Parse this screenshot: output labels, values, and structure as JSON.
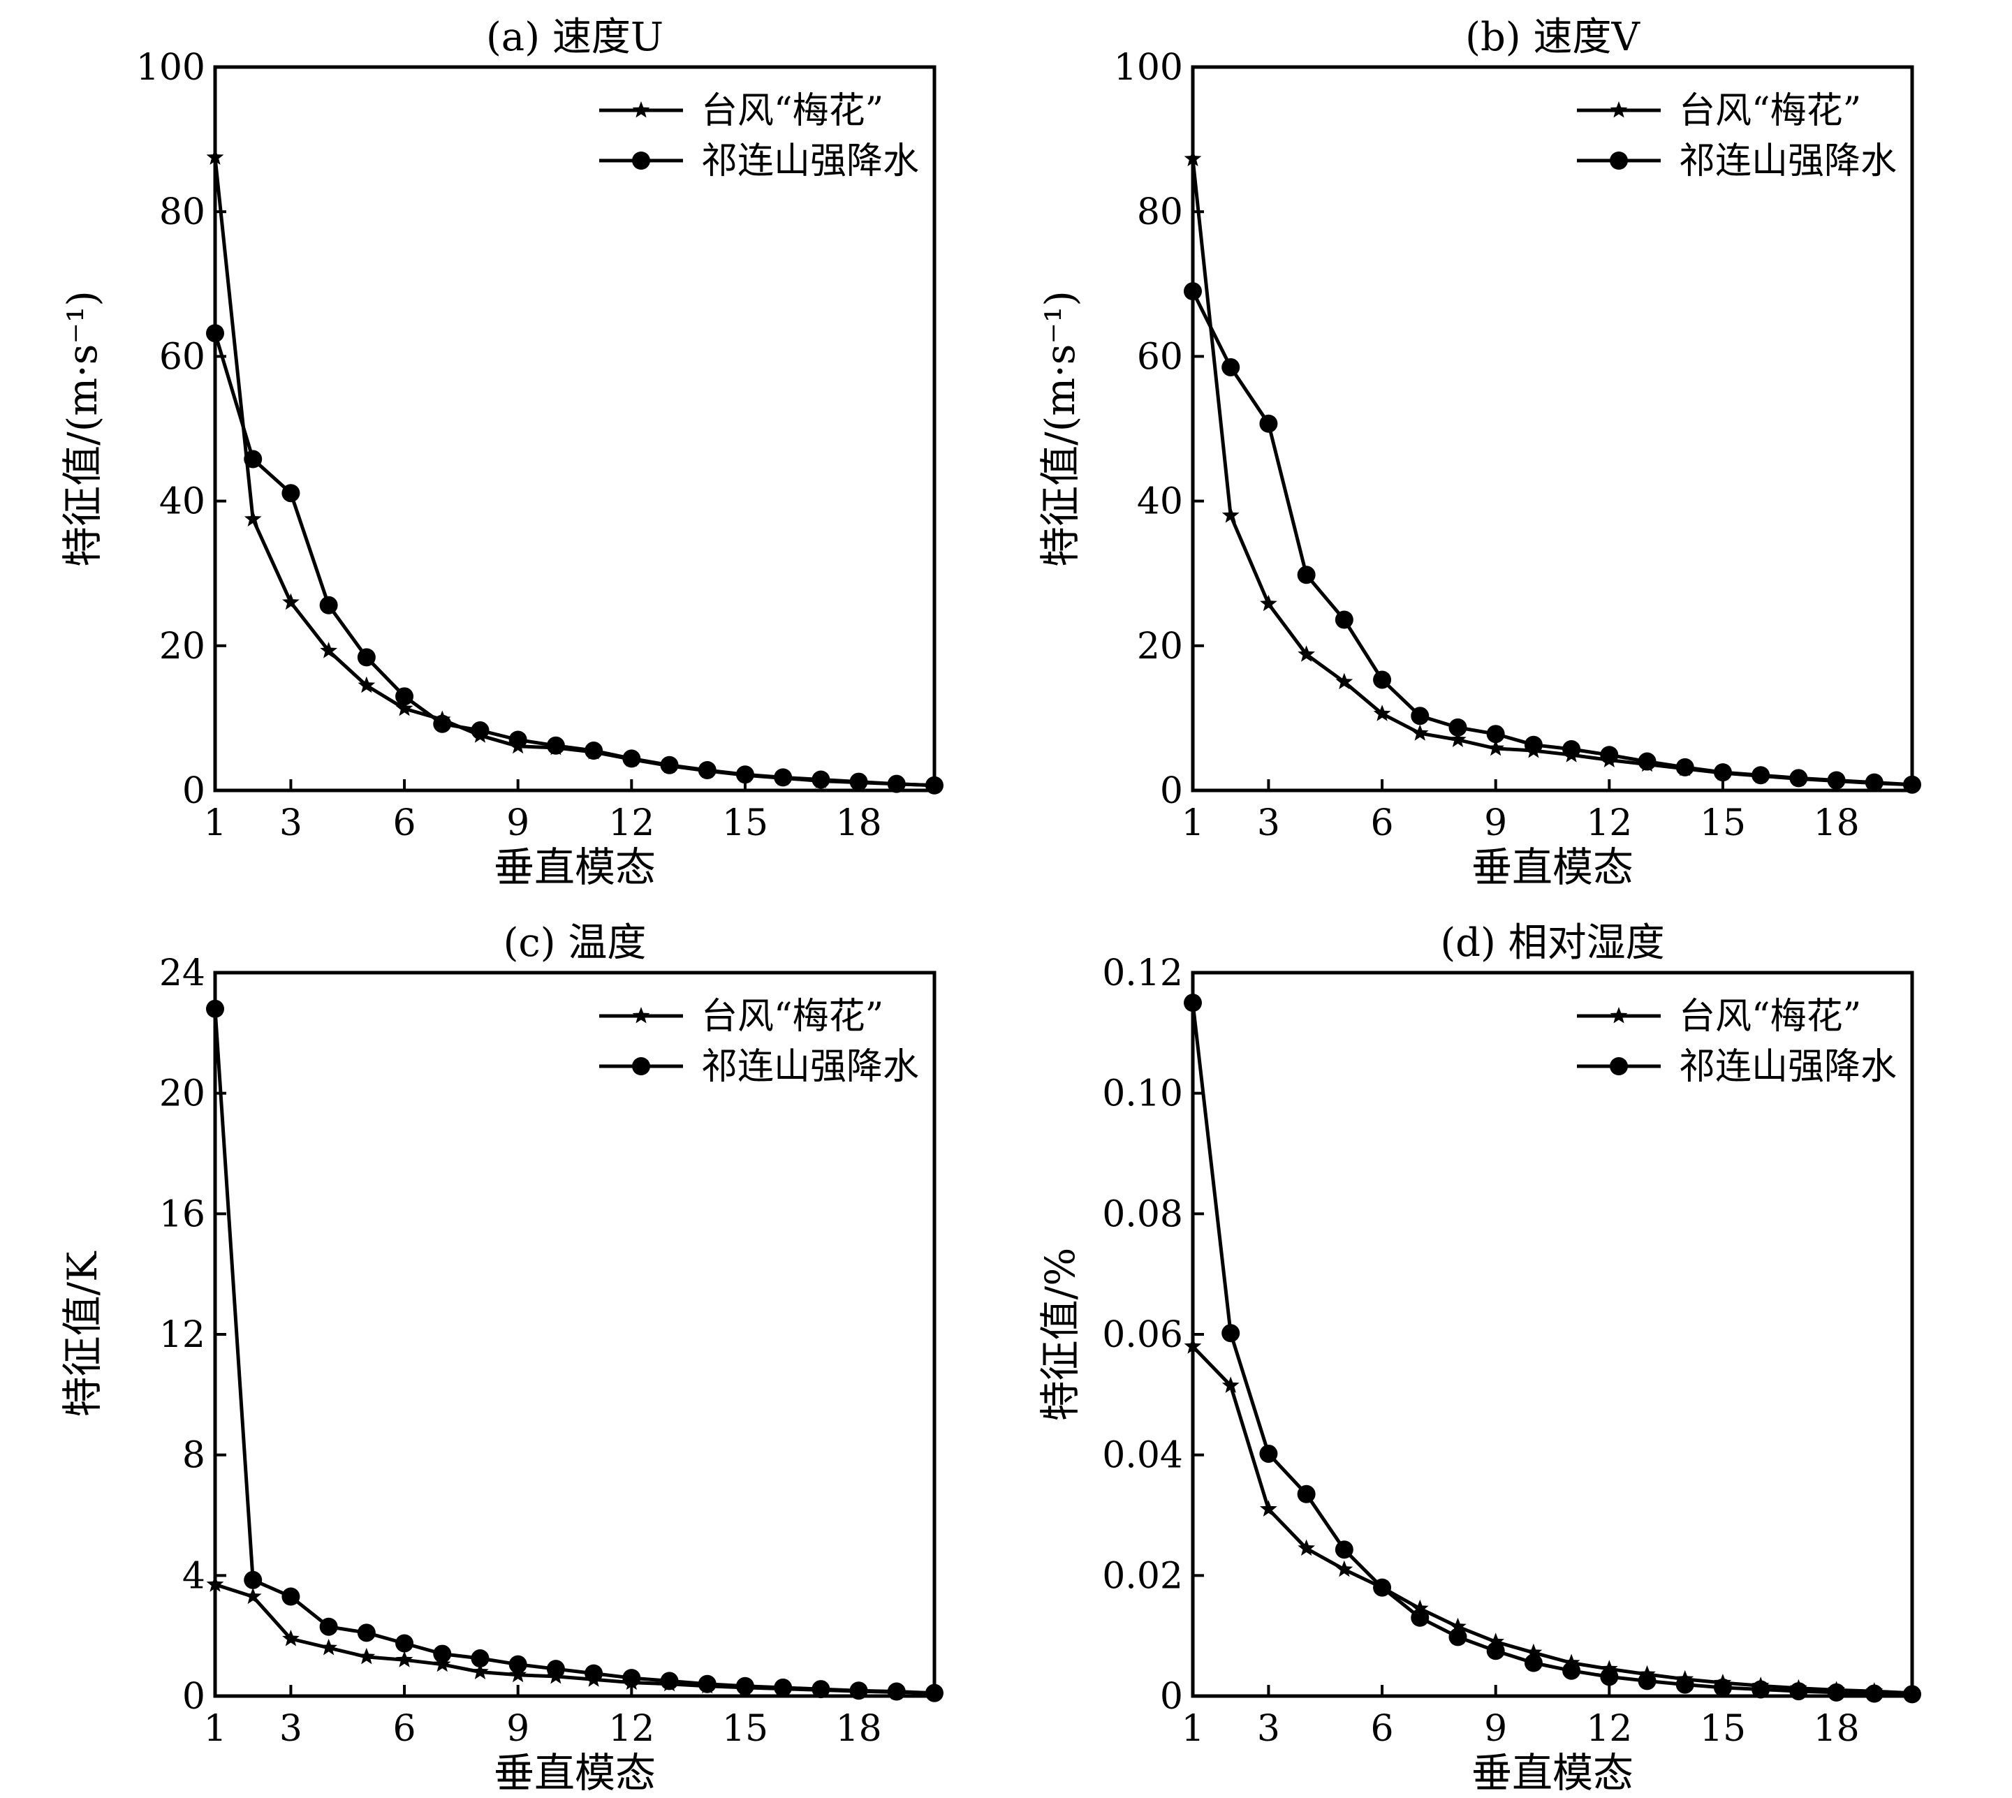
{
  "figure": {
    "legend_placement": "top-right",
    "line_color": "#000000",
    "background": "#ffffff"
  },
  "chart_data": [
    {
      "id": "a",
      "type": "line",
      "title": "(a) 速度U",
      "xlabel": "垂直模态",
      "ylabel": "特征值/(m·s⁻¹)",
      "xlim": [
        1,
        20
      ],
      "ylim": [
        0,
        100
      ],
      "xticks": [
        1,
        3,
        6,
        9,
        12,
        15,
        18
      ],
      "yticks": [
        0,
        20,
        40,
        60,
        80,
        100
      ],
      "ytick_labels": [
        "0",
        "20",
        "40",
        "60",
        "80",
        "100"
      ],
      "x": [
        1,
        2,
        3,
        4,
        5,
        6,
        7,
        8,
        9,
        10,
        11,
        12,
        13,
        14,
        15,
        16,
        17,
        18,
        19,
        20
      ],
      "series": [
        {
          "name": "台风“梅花”",
          "marker": "star",
          "values": [
            87.5,
            37.5,
            26,
            19.3,
            14.5,
            11.3,
            9.8,
            7.6,
            6.1,
            5.9,
            5.3,
            4.3,
            3.4,
            2.7,
            2.1,
            1.7,
            1.3,
            1.1,
            0.9,
            0.7
          ]
        },
        {
          "name": "祁连山强降水",
          "marker": "circle",
          "values": [
            63.2,
            45.8,
            41.1,
            25.6,
            18.4,
            13.0,
            9.2,
            8.3,
            7.0,
            6.2,
            5.5,
            4.4,
            3.5,
            2.8,
            2.2,
            1.8,
            1.5,
            1.2,
            0.9,
            0.7
          ]
        }
      ]
    },
    {
      "id": "b",
      "type": "line",
      "title": "(b) 速度V",
      "xlabel": "垂直模态",
      "ylabel": "特征值/(m·s⁻¹)",
      "xlim": [
        1,
        20
      ],
      "ylim": [
        0,
        100
      ],
      "xticks": [
        1,
        3,
        6,
        9,
        12,
        15,
        18
      ],
      "yticks": [
        0,
        20,
        40,
        60,
        80,
        100
      ],
      "ytick_labels": [
        "0",
        "20",
        "40",
        "60",
        "80",
        "100"
      ],
      "x": [
        1,
        2,
        3,
        4,
        5,
        6,
        7,
        8,
        9,
        10,
        11,
        12,
        13,
        14,
        15,
        16,
        17,
        18,
        19,
        20
      ],
      "series": [
        {
          "name": "台风“梅花”",
          "marker": "star",
          "values": [
            87.3,
            38.0,
            25.8,
            18.8,
            15.0,
            10.6,
            7.9,
            7.0,
            5.8,
            5.5,
            4.9,
            4.2,
            3.6,
            3.0,
            2.4,
            2.0,
            1.6,
            1.3,
            1.0,
            0.8
          ]
        },
        {
          "name": "祁连山强降水",
          "marker": "circle",
          "values": [
            69.0,
            58.5,
            50.7,
            29.8,
            23.6,
            15.3,
            10.3,
            8.7,
            7.8,
            6.3,
            5.7,
            4.9,
            4.0,
            3.2,
            2.5,
            2.1,
            1.7,
            1.4,
            1.1,
            0.8
          ]
        }
      ]
    },
    {
      "id": "c",
      "type": "line",
      "title": "(c) 温度",
      "xlabel": "垂直模态",
      "ylabel": "特征值/K",
      "xlim": [
        1,
        20
      ],
      "ylim": [
        0,
        24
      ],
      "xticks": [
        1,
        3,
        6,
        9,
        12,
        15,
        18
      ],
      "yticks": [
        0,
        4,
        8,
        12,
        16,
        20,
        24
      ],
      "ytick_labels": [
        "0",
        "4",
        "8",
        "12",
        "16",
        "20",
        "24"
      ],
      "x": [
        1,
        2,
        3,
        4,
        5,
        6,
        7,
        8,
        9,
        10,
        11,
        12,
        13,
        14,
        15,
        16,
        17,
        18,
        19,
        20
      ],
      "series": [
        {
          "name": "台风“梅花”",
          "marker": "star",
          "values": [
            3.7,
            3.3,
            1.9,
            1.6,
            1.3,
            1.2,
            1.05,
            0.8,
            0.7,
            0.65,
            0.55,
            0.45,
            0.4,
            0.33,
            0.28,
            0.24,
            0.2,
            0.16,
            0.13,
            0.1
          ]
        },
        {
          "name": "祁连山强降水",
          "marker": "circle",
          "values": [
            22.8,
            3.85,
            3.3,
            2.3,
            2.1,
            1.75,
            1.4,
            1.25,
            1.05,
            0.9,
            0.75,
            0.6,
            0.5,
            0.4,
            0.33,
            0.28,
            0.23,
            0.18,
            0.15,
            0.1
          ]
        }
      ]
    },
    {
      "id": "d",
      "type": "line",
      "title": "(d) 相对湿度",
      "xlabel": "垂直模态",
      "ylabel": "特征值/%",
      "xlim": [
        1,
        20
      ],
      "ylim": [
        0,
        0.12
      ],
      "xticks": [
        1,
        3,
        6,
        9,
        12,
        15,
        18
      ],
      "yticks": [
        0,
        0.02,
        0.04,
        0.06,
        0.08,
        0.1,
        0.12
      ],
      "ytick_labels": [
        "0",
        "0.02",
        "0.04",
        "0.06",
        "0.08",
        "0.10",
        "0.12"
      ],
      "x": [
        1,
        2,
        3,
        4,
        5,
        6,
        7,
        8,
        9,
        10,
        11,
        12,
        13,
        14,
        15,
        16,
        17,
        18,
        19,
        20
      ],
      "series": [
        {
          "name": "台风“梅花”",
          "marker": "star",
          "values": [
            0.058,
            0.0515,
            0.031,
            0.0245,
            0.021,
            0.018,
            0.0145,
            0.0115,
            0.009,
            0.0072,
            0.0055,
            0.0045,
            0.0036,
            0.0028,
            0.0022,
            0.0017,
            0.0013,
            0.001,
            0.0008,
            0.0005
          ]
        },
        {
          "name": "祁连山强降水",
          "marker": "circle",
          "values": [
            0.115,
            0.0602,
            0.0402,
            0.0335,
            0.0243,
            0.018,
            0.013,
            0.0098,
            0.0075,
            0.0055,
            0.0042,
            0.0032,
            0.0025,
            0.0019,
            0.0014,
            0.0011,
            0.0008,
            0.0006,
            0.0004,
            0.0003
          ]
        }
      ]
    }
  ]
}
